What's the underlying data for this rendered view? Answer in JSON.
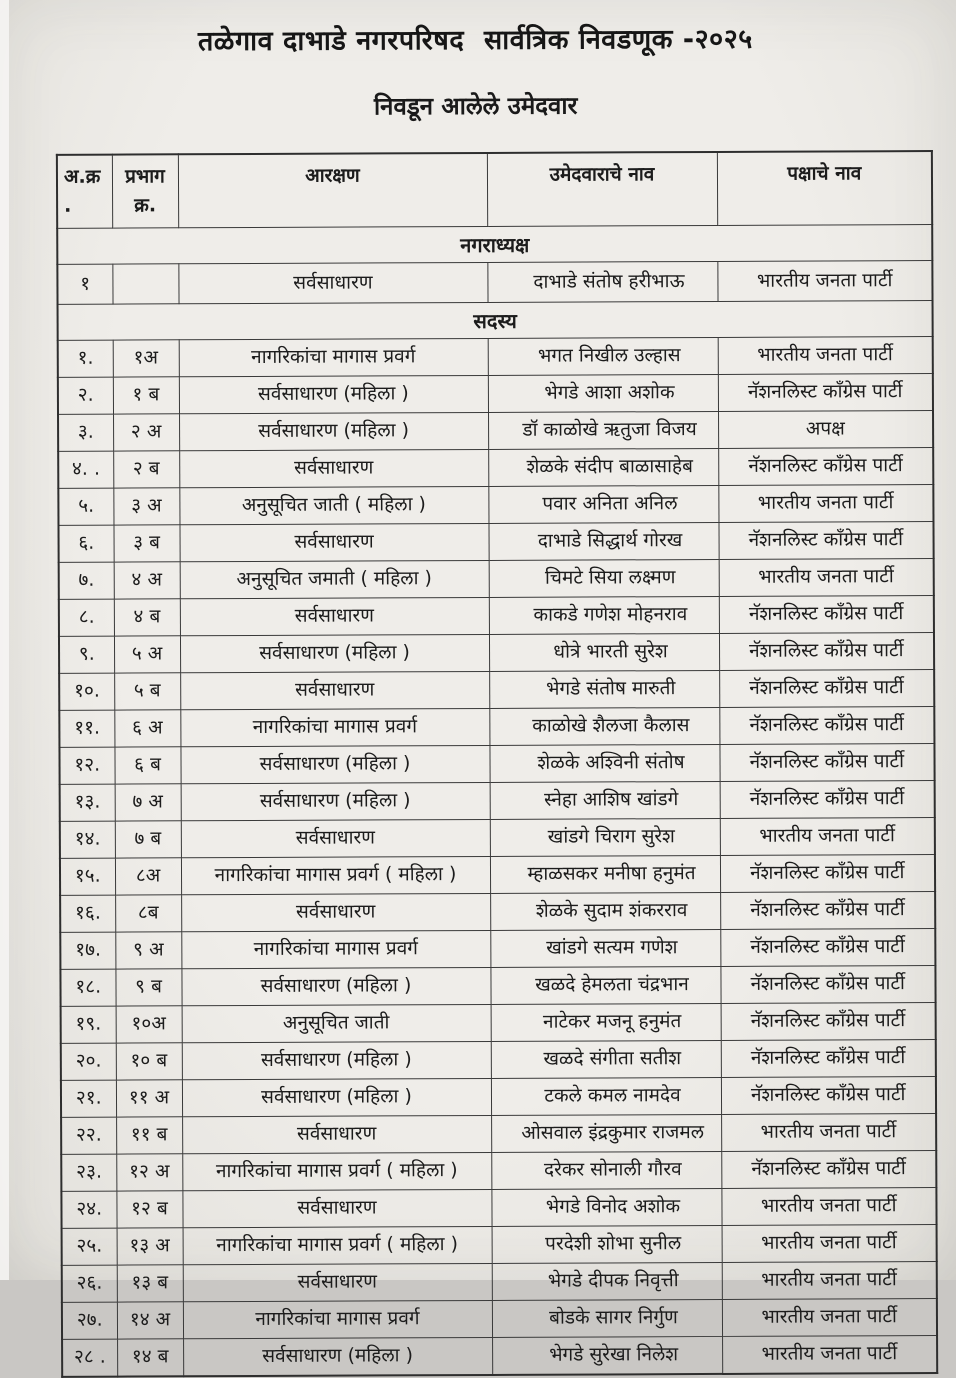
{
  "page": {
    "title": "तळेगाव दाभाडे नगरपरिषद  सार्वत्रिक निवडणूक -२०२५",
    "subtitle": "निवडून आलेले उमेदवार"
  },
  "colors": {
    "paper": "#efede9",
    "ink": "#1c1c1c",
    "line": "#3a3a3a"
  },
  "table": {
    "headers": {
      "serial": "अ.क्र .",
      "ward_line1": "प्रभाग",
      "ward_line2": "क्र.",
      "reservation": "आरक्षण",
      "candidate": "उमेदवाराचे नाव",
      "party": "पक्षाचे नाव"
    },
    "sections": [
      {
        "label": "नगराध्यक्ष",
        "type": "mayor",
        "rows": [
          {
            "serial": "१",
            "ward": "",
            "reservation": "सर्वसाधारण",
            "candidate": "दाभाडे संतोष हरीभाऊ",
            "party": "भारतीय जनता पार्टी"
          }
        ]
      },
      {
        "label": "सदस्य",
        "type": "member",
        "rows": [
          {
            "serial": "१.",
            "ward": "१अ",
            "reservation": "नागरिकांचा मागास प्रवर्ग",
            "candidate": "भगत निखील उल्हास",
            "party": "भारतीय जनता पार्टी"
          },
          {
            "serial": "२.",
            "ward": "१ ब",
            "reservation": "सर्वसाधारण (महिला )",
            "candidate": "भेगडे आशा अशोक",
            "party": "नॅशनलिस्ट कॉंग्रेस पार्टी"
          },
          {
            "serial": "३.",
            "ward": "२ अ",
            "reservation": "सर्वसाधारण (महिला )",
            "candidate": "डॉ काळोखे ऋतुजा विजय",
            "party": "अपक्ष"
          },
          {
            "serial": "४. .",
            "ward": "२ ब",
            "reservation": "सर्वसाधारण",
            "candidate": "शेळके संदीप बाळासाहेब",
            "party": "नॅशनलिस्ट कॉंग्रेस पार्टी"
          },
          {
            "serial": "५.",
            "ward": "३ अ",
            "reservation": "अनुसूचित जाती ( महिला )",
            "candidate": "पवार अनिता अनिल",
            "party": "भारतीय जनता पार्टी"
          },
          {
            "serial": "६.",
            "ward": "३ ब",
            "reservation": "सर्वसाधारण",
            "candidate": "दाभाडे सिद्धार्थ गोरख",
            "party": "नॅशनलिस्ट कॉंग्रेस पार्टी"
          },
          {
            "serial": "७.",
            "ward": "४ अ",
            "reservation": "अनुसूचित जमाती ( महिला )",
            "candidate": "चिमटे सिया लक्ष्मण",
            "party": "भारतीय जनता पार्टी"
          },
          {
            "serial": "८.",
            "ward": "४ ब",
            "reservation": "सर्वसाधारण",
            "candidate": "काकडे गणेश मोहनराव",
            "party": "नॅशनलिस्ट कॉंग्रेस पार्टी"
          },
          {
            "serial": "९.",
            "ward": "५ अ",
            "reservation": "सर्वसाधारण (महिला )",
            "candidate": "धोत्रे भारती सुरेश",
            "party": "नॅशनलिस्ट कॉंग्रेस पार्टी"
          },
          {
            "serial": "१०.",
            "ward": "५ ब",
            "reservation": "सर्वसाधारण",
            "candidate": "भेगडे संतोष मारुती",
            "party": "नॅशनलिस्ट कॉंग्रेस पार्टी"
          },
          {
            "serial": "११.",
            "ward": "६ अ",
            "reservation": "नागरिकांचा मागास प्रवर्ग",
            "candidate": "काळोखे शैलजा कैलास",
            "party": "नॅशनलिस्ट कॉंग्रेस पार्टी"
          },
          {
            "serial": "१२.",
            "ward": "६ ब",
            "reservation": "सर्वसाधारण (महिला )",
            "candidate": "शेळके अश्विनी संतोष",
            "party": "नॅशनलिस्ट कॉंग्रेस पार्टी"
          },
          {
            "serial": "१३.",
            "ward": "७ अ",
            "reservation": "सर्वसाधारण (महिला )",
            "candidate": "स्नेहा आशिष खांडगे",
            "party": "नॅशनलिस्ट कॉंग्रेस पार्टी"
          },
          {
            "serial": "१४.",
            "ward": "७ ब",
            "reservation": "सर्वसाधारण",
            "candidate": "खांडगे चिराग सुरेश",
            "party": "भारतीय जनता पार्टी"
          },
          {
            "serial": "१५.",
            "ward": "८अ",
            "reservation": "नागरिकांचा मागास प्रवर्ग ( महिला )",
            "candidate": "म्हाळसकर मनीषा हनुमंत",
            "party": "नॅशनलिस्ट कॉंग्रेस पार्टी"
          },
          {
            "serial": "१६.",
            "ward": "८ब",
            "reservation": "सर्वसाधारण",
            "candidate": "शेळके सुदाम शंकरराव",
            "party": "नॅशनलिस्ट कॉंग्रेस पार्टी"
          },
          {
            "serial": "१७.",
            "ward": "९ अ",
            "reservation": "नागरिकांचा मागास प्रवर्ग",
            "candidate": "खांडगे सत्यम गणेश",
            "party": "नॅशनलिस्ट कॉंग्रेस पार्टी"
          },
          {
            "serial": "१८.",
            "ward": "९ ब",
            "reservation": "सर्वसाधारण (महिला )",
            "candidate": "खळदे हेमलता चंद्रभान",
            "party": "नॅशनलिस्ट कॉंग्रेस पार्टी"
          },
          {
            "serial": "१९.",
            "ward": "१०अ",
            "reservation": "अनुसूचित जाती",
            "candidate": "नाटेकर मजनू हनुमंत",
            "party": "नॅशनलिस्ट कॉंग्रेस पार्टी"
          },
          {
            "serial": "२०.",
            "ward": "१० ब",
            "reservation": "सर्वसाधारण (महिला )",
            "candidate": "खळदे संगीता सतीश",
            "party": "नॅशनलिस्ट कॉंग्रेस पार्टी"
          },
          {
            "serial": "२१.",
            "ward": "११ अ",
            "reservation": "सर्वसाधारण (महिला )",
            "candidate": "टकले कमल नामदेव",
            "party": "नॅशनलिस्ट कॉंग्रेस पार्टी"
          },
          {
            "serial": "२२.",
            "ward": "११ ब",
            "reservation": "सर्वसाधारण",
            "candidate": "ओसवाल इंद्रकुमार राजमल",
            "party": "भारतीय जनता पार्टी"
          },
          {
            "serial": "२३.",
            "ward": "१२ अ",
            "reservation": "नागरिकांचा मागास प्रवर्ग ( महिला )",
            "candidate": "दरेकर सोनाली गौरव",
            "party": "नॅशनलिस्ट कॉंग्रेस पार्टी"
          },
          {
            "serial": "२४.",
            "ward": "१२ ब",
            "reservation": "सर्वसाधारण",
            "candidate": "भेगडे विनोद अशोक",
            "party": "भारतीय जनता पार्टी"
          },
          {
            "serial": "२५.",
            "ward": "१३ अ",
            "reservation": "नागरिकांचा मागास प्रवर्ग ( महिला )",
            "candidate": "परदेशी शोभा सुनील",
            "party": "भारतीय जनता पार्टी"
          },
          {
            "serial": "२६.",
            "ward": "१३ ब",
            "reservation": "सर्वसाधारण",
            "candidate": "भेगडे दीपक निवृत्ती",
            "party": "भारतीय जनता पार्टी"
          },
          {
            "serial": "२७.",
            "ward": "१४ अ",
            "reservation": "नागरिकांचा मागास प्रवर्ग",
            "candidate": "बोडके सागर निर्गुण",
            "party": "भारतीय जनता पार्टी"
          },
          {
            "serial": "२८ .",
            "ward": "१४ ब",
            "reservation": "सर्वसाधारण (महिला )",
            "candidate": "भेगडे सुरेखा निलेश",
            "party": "भारतीय जनता पार्टी"
          }
        ]
      }
    ]
  }
}
